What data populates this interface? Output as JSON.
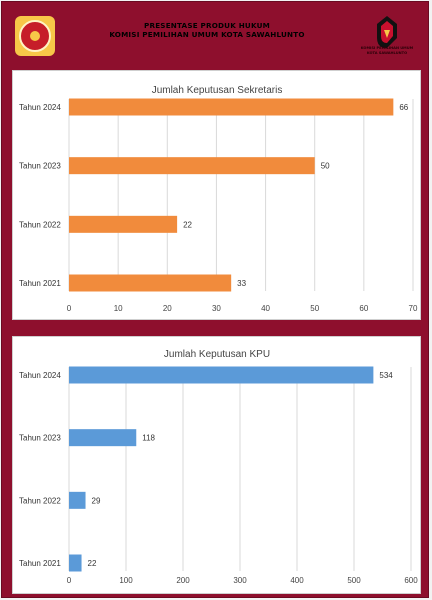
{
  "header": {
    "title_line1": "PRESENTASE PRODUK HUKUM",
    "title_line2": "KOMISI PEMILIHAN UMUM KOTA SAWAHLUNTO"
  },
  "colors": {
    "background": "#8e0f2d",
    "bar_sekretaris": "#f18b3c",
    "bar_kpu": "#5b9ad8"
  },
  "chart_data": [
    {
      "type": "bar",
      "orientation": "horizontal",
      "title": "Jumlah Keputusan Sekretaris",
      "categories": [
        "Tahun 2024",
        "Tahun 2023",
        "Tahun 2022",
        "Tahun 2021"
      ],
      "values": [
        66,
        50,
        22,
        33
      ],
      "xlim": [
        0,
        70
      ],
      "xticks": [
        0,
        10,
        20,
        30,
        40,
        50,
        60,
        70
      ],
      "grid": true,
      "color": "#f18b3c"
    },
    {
      "type": "bar",
      "orientation": "horizontal",
      "title": "Jumlah Keputusan KPU",
      "categories": [
        "Tahun 2024",
        "Tahun 2023",
        "Tahun 2022",
        "Tahun 2021"
      ],
      "values": [
        534,
        118,
        29,
        22
      ],
      "xlim": [
        0,
        600
      ],
      "xticks": [
        0,
        100,
        200,
        300,
        400,
        500,
        600
      ],
      "grid": true,
      "color": "#5b9ad8"
    }
  ]
}
